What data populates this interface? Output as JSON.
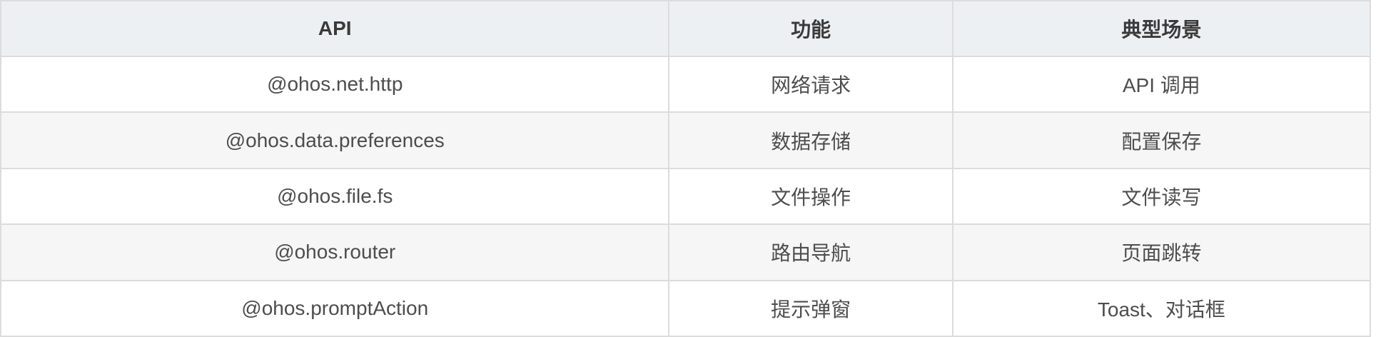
{
  "table": {
    "columns": [
      {
        "label": "API"
      },
      {
        "label": "功能"
      },
      {
        "label": "典型场景"
      }
    ],
    "rows": [
      {
        "api": "@ohos.net.http",
        "function": "网络请求",
        "scenario": "API 调用"
      },
      {
        "api": "@ohos.data.preferences",
        "function": "数据存储",
        "scenario": "配置保存"
      },
      {
        "api": "@ohos.file.fs",
        "function": "文件操作",
        "scenario": "文件读写"
      },
      {
        "api": "@ohos.router",
        "function": "路由导航",
        "scenario": "页面跳转"
      },
      {
        "api": "@ohos.promptAction",
        "function": "提示弹窗",
        "scenario": "Toast、对话框"
      }
    ],
    "colors": {
      "header_bg": "#edf0f3",
      "row_alt_bg": "#f6f6f6",
      "border": "#dcdcdc",
      "header_text": "#3a3a3a",
      "cell_text": "#4d4d4d"
    }
  }
}
